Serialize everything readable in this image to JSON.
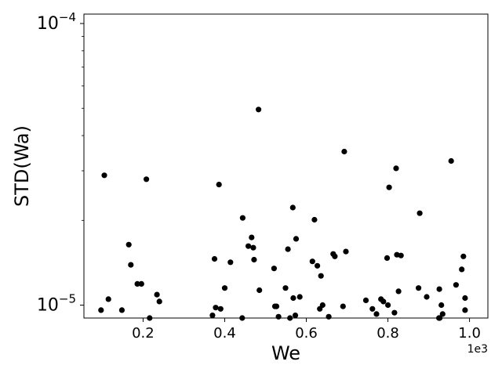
{
  "chart_data": {
    "type": "scatter",
    "xlabel": "We",
    "ylabel": "STD(Wa)",
    "x_offset_label": "1e3",
    "x_scale": "linear",
    "y_scale": "log",
    "xlim": [
      0.055,
      1.045
    ],
    "ylim": [
      9e-06,
      0.000108
    ],
    "x_ticks": [
      {
        "value": 0.2,
        "label": "0.2"
      },
      {
        "value": 0.4,
        "label": "0.4"
      },
      {
        "value": 0.6,
        "label": "0.6"
      },
      {
        "value": 0.8,
        "label": "0.8"
      },
      {
        "value": 1.0,
        "label": "1.0"
      }
    ],
    "y_major_ticks": [
      {
        "value": 1e-05,
        "base": "10",
        "exponent": "−5"
      },
      {
        "value": 0.0001,
        "base": "10",
        "exponent": "−4"
      }
    ],
    "y_minor_ticks": [
      2e-05,
      3e-05,
      4e-05,
      5e-05,
      6e-05,
      7e-05,
      8e-05,
      9e-05
    ],
    "grid": false,
    "legend": "none",
    "marker_color": "#000000",
    "points": [
      [
        0.097,
        9.6e-06
      ],
      [
        0.105,
        2.89e-05
      ],
      [
        0.115,
        1.05e-05
      ],
      [
        0.148,
        9.6e-06
      ],
      [
        0.165,
        1.64e-05
      ],
      [
        0.17,
        1.39e-05
      ],
      [
        0.186,
        1.19e-05
      ],
      [
        0.196,
        1.19e-05
      ],
      [
        0.208,
        2.8e-05
      ],
      [
        0.216,
        8.8e-06
      ],
      [
        0.234,
        1.09e-05
      ],
      [
        0.24,
        1.03e-05
      ],
      [
        0.37,
        9.2e-06
      ],
      [
        0.375,
        1.46e-05
      ],
      [
        0.378,
        9.8e-06
      ],
      [
        0.386,
        2.68e-05
      ],
      [
        0.39,
        9.7e-06
      ],
      [
        0.4,
        1.15e-05
      ],
      [
        0.414,
        1.42e-05
      ],
      [
        0.443,
        8.9e-06
      ],
      [
        0.444,
        2.04e-05
      ],
      [
        0.458,
        1.62e-05
      ],
      [
        0.466,
        1.74e-05
      ],
      [
        0.47,
        1.6e-05
      ],
      [
        0.472,
        1.45e-05
      ],
      [
        0.483,
        4.95e-05
      ],
      [
        0.485,
        1.13e-05
      ],
      [
        0.521,
        1.35e-05
      ],
      [
        0.523,
        9.9e-06
      ],
      [
        0.527,
        9.9e-06
      ],
      [
        0.532,
        9.1e-06
      ],
      [
        0.549,
        1.15e-05
      ],
      [
        0.555,
        1.58e-05
      ],
      [
        0.56,
        8.9e-06
      ],
      [
        0.567,
        2.22e-05
      ],
      [
        0.568,
        1.06e-05
      ],
      [
        0.573,
        9.2e-06
      ],
      [
        0.575,
        1.72e-05
      ],
      [
        0.584,
        1.07e-05
      ],
      [
        0.615,
        1.43e-05
      ],
      [
        0.62,
        2.01e-05
      ],
      [
        0.627,
        1.38e-05
      ],
      [
        0.633,
        9.7e-06
      ],
      [
        0.636,
        1.27e-05
      ],
      [
        0.64,
        1e-05
      ],
      [
        0.655,
        9.1e-06
      ],
      [
        0.666,
        1.52e-05
      ],
      [
        0.67,
        1.49e-05
      ],
      [
        0.69,
        9.9e-06
      ],
      [
        0.693,
        3.51e-05
      ],
      [
        0.697,
        1.55e-05
      ],
      [
        0.746,
        1.04e-05
      ],
      [
        0.762,
        9.7e-06
      ],
      [
        0.772,
        9.3e-06
      ],
      [
        0.783,
        1.05e-05
      ],
      [
        0.789,
        1.03e-05
      ],
      [
        0.798,
        1.47e-05
      ],
      [
        0.8,
        1e-05
      ],
      [
        0.803,
        2.62e-05
      ],
      [
        0.816,
        9.4e-06
      ],
      [
        0.82,
        3.06e-05
      ],
      [
        0.822,
        1.51e-05
      ],
      [
        0.826,
        1.12e-05
      ],
      [
        0.832,
        1.5e-05
      ],
      [
        0.875,
        1.15e-05
      ],
      [
        0.878,
        2.12e-05
      ],
      [
        0.895,
        1.07e-05
      ],
      [
        0.925,
        9e-06
      ],
      [
        0.926,
        1.14e-05
      ],
      [
        0.931,
        1e-05
      ],
      [
        0.934,
        9.3e-06
      ],
      [
        0.955,
        3.25e-05
      ],
      [
        0.967,
        1.18e-05
      ],
      [
        0.981,
        1.34e-05
      ],
      [
        0.985,
        1.49e-05
      ],
      [
        0.989,
        1.06e-05
      ],
      [
        0.989,
        9.6e-06
      ],
      [
        0.927,
        8.9e-06
      ]
    ]
  }
}
